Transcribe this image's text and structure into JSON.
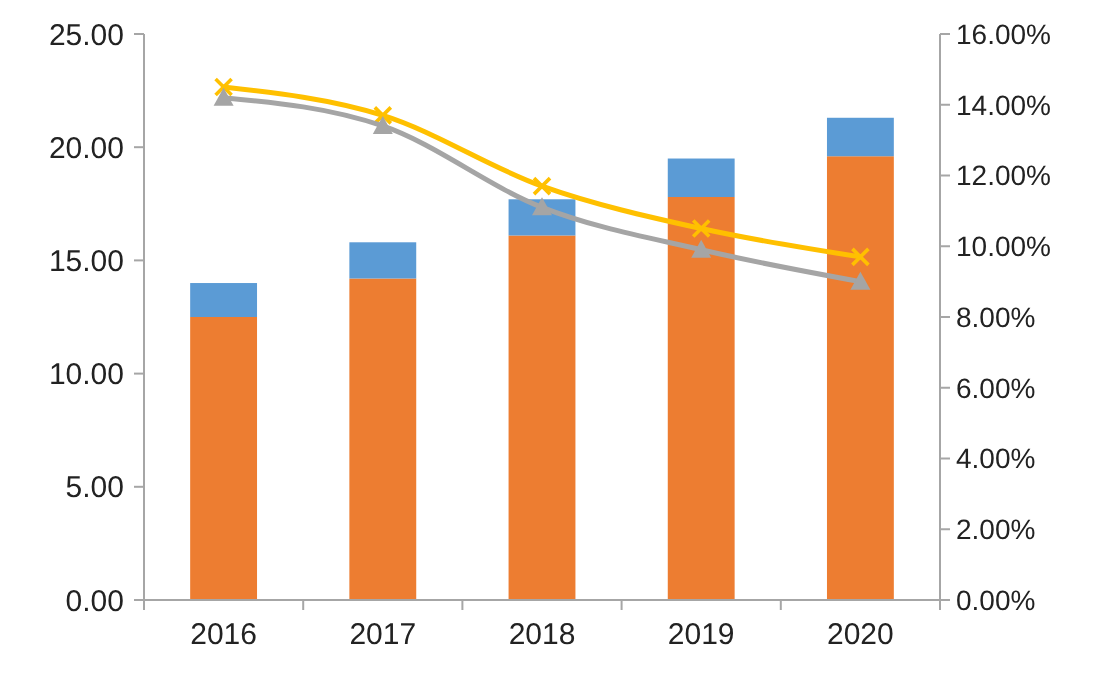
{
  "chart_data": {
    "type": "bar",
    "stacked": true,
    "categories": [
      "2016",
      "2017",
      "2018",
      "2019",
      "2020"
    ],
    "series": [
      {
        "color": "#ed7d31",
        "values": [
          12.5,
          14.2,
          16.1,
          17.8,
          19.6
        ]
      },
      {
        "color": "#5b9bd5",
        "values": [
          1.5,
          1.6,
          1.6,
          1.7,
          1.7
        ]
      },
      {
        "type": "line",
        "axis": "y2",
        "color": "#ffc000",
        "marker": "cross",
        "values": [
          14.5,
          13.7,
          11.7,
          10.5,
          9.7
        ]
      },
      {
        "type": "line",
        "axis": "y2",
        "color": "#a5a5a5",
        "marker": "triangle",
        "values": [
          14.2,
          13.4,
          11.1,
          9.9,
          9.0
        ]
      }
    ],
    "ylim": [
      0,
      25
    ],
    "yticks": [
      {
        "value": 0,
        "label": "0.00"
      },
      {
        "value": 5,
        "label": "5.00"
      },
      {
        "value": 10,
        "label": "10.00"
      },
      {
        "value": 15,
        "label": "15.00"
      },
      {
        "value": 20,
        "label": "20.00"
      },
      {
        "value": 25,
        "label": "25.00"
      }
    ],
    "y2lim": [
      0,
      16
    ],
    "y2ticks": [
      {
        "value": 0,
        "label": "0.00%"
      },
      {
        "value": 2,
        "label": "2.00%"
      },
      {
        "value": 4,
        "label": "4.00%"
      },
      {
        "value": 6,
        "label": "6.00%"
      },
      {
        "value": 8,
        "label": "8.00%"
      },
      {
        "value": 10,
        "label": "10.00%"
      },
      {
        "value": 12,
        "label": "12.00%"
      },
      {
        "value": 14,
        "label": "14.00%"
      },
      {
        "value": 16,
        "label": "16.00%"
      }
    ],
    "grid": false
  }
}
